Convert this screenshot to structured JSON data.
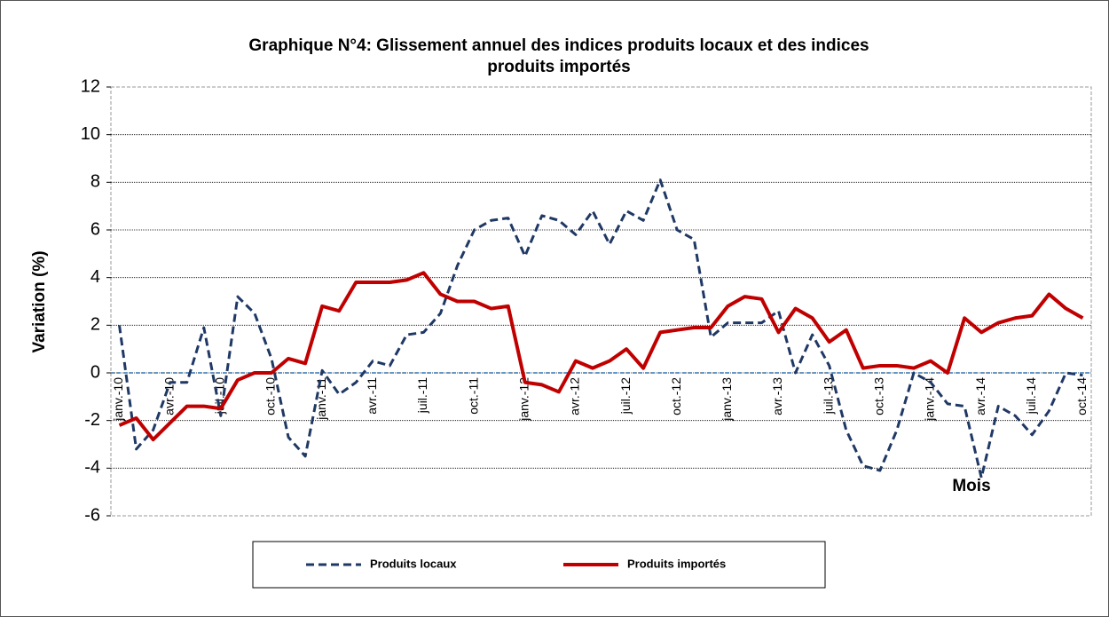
{
  "chart_data": {
    "type": "line",
    "title": [
      "Graphique N°4: Glissement annuel des indices produits locaux et des indices",
      "produits importés"
    ],
    "y_label": "Variation (%)",
    "x_label": "Mois",
    "categories": [
      "janv.-10",
      null,
      null,
      "avr.-10",
      null,
      null,
      "juil.-10",
      null,
      null,
      "oct.-10",
      null,
      null,
      "janv.-11",
      null,
      null,
      "avr.-11",
      null,
      null,
      "juil.-11",
      null,
      null,
      "oct.-11",
      null,
      null,
      "janv.-12",
      null,
      null,
      "avr.-12",
      null,
      null,
      "juil.-12",
      null,
      null,
      "oct.-12",
      null,
      null,
      "janv.-13",
      null,
      null,
      "avr.-13",
      null,
      null,
      "juil.-13",
      null,
      null,
      "oct.-13",
      null,
      null,
      "janv.-14",
      null,
      null,
      "avr.-14",
      null,
      null,
      "juil.-14",
      null,
      null,
      "oct.-14"
    ],
    "series": [
      {
        "name": "Produits locaux",
        "color": "#1f3864",
        "dashed": true,
        "values": [
          2.0,
          -3.2,
          -2.4,
          -0.4,
          -0.4,
          1.9,
          -1.8,
          3.2,
          2.5,
          0.6,
          -2.7,
          -3.5,
          0.1,
          -0.9,
          -0.4,
          0.5,
          0.3,
          1.6,
          1.7,
          2.5,
          4.5,
          6.0,
          6.4,
          6.5,
          4.9,
          6.6,
          6.4,
          5.8,
          6.8,
          5.4,
          6.8,
          6.4,
          8.1,
          6.0,
          5.6,
          1.5,
          2.1,
          2.1,
          2.1,
          2.6,
          0.0,
          1.6,
          0.3,
          -2.4,
          -3.9,
          -4.1,
          -2.4,
          0.0,
          -0.4,
          -1.3,
          -1.4,
          -4.4,
          -1.4,
          -1.8,
          -2.6,
          -1.6,
          0.0,
          -0.1
        ]
      },
      {
        "name": "Produits importés",
        "color": "#c00000",
        "dashed": false,
        "values": [
          -2.2,
          -1.9,
          -2.8,
          -2.1,
          -1.4,
          -1.4,
          -1.5,
          -0.3,
          0.0,
          0.0,
          0.6,
          0.4,
          2.8,
          2.6,
          3.8,
          3.8,
          3.8,
          3.9,
          4.2,
          3.3,
          3.0,
          3.0,
          2.7,
          2.8,
          -0.4,
          -0.5,
          -0.8,
          0.5,
          0.2,
          0.5,
          1.0,
          0.2,
          1.7,
          1.8,
          1.9,
          1.9,
          2.8,
          3.2,
          3.1,
          1.7,
          2.7,
          2.3,
          1.3,
          1.8,
          0.2,
          0.3,
          0.3,
          0.2,
          0.5,
          0.0,
          2.3,
          1.7,
          2.1,
          2.3,
          2.4,
          3.3,
          2.7,
          2.3
        ]
      }
    ],
    "ylim": [
      -6,
      12
    ],
    "yticks": [
      -6,
      -4,
      -2,
      0,
      2,
      4,
      6,
      8,
      10,
      12
    ],
    "grid": true,
    "legend": "bottom"
  }
}
